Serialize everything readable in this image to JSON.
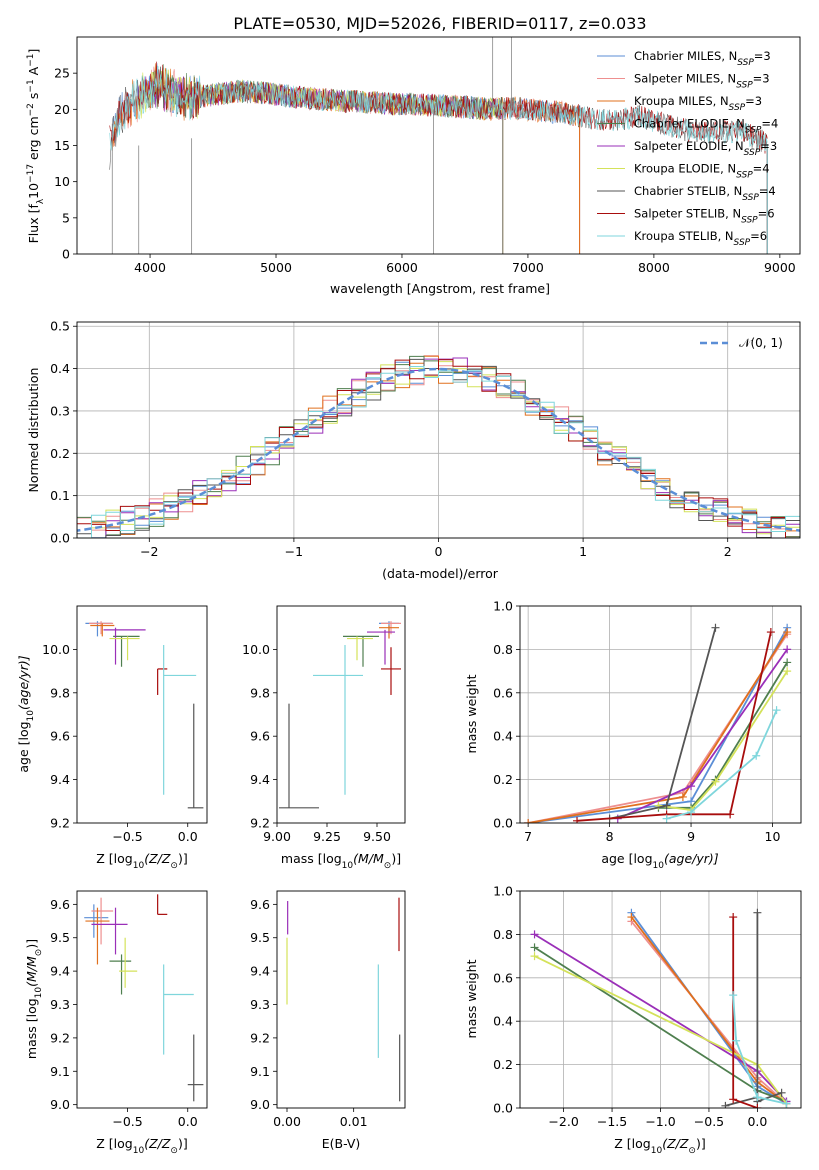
{
  "title": "PLATE=0530, MJD=52026, FIBERID=0117, z=0.033",
  "colors": {
    "Chabrier MILES": "#5b8ed6",
    "Salpeter MILES": "#ee8f8f",
    "Kroupa MILES": "#e0701e",
    "Chabrier ELODIE": "#4f7f4f",
    "Salpeter ELODIE": "#9a2fb8",
    "Kroupa ELODIE": "#d4e25a",
    "Chabrier STELIB": "#555555",
    "Salpeter STELIB": "#a80d0d",
    "Kroupa STELIB": "#7fd6dc"
  },
  "chart_data": [
    {
      "id": "spectrum",
      "type": "line",
      "title": "PLATE=0530, MJD=52026, FIBERID=0117, z=0.033",
      "xlabel": "wavelength [Angstrom, rest frame]",
      "ylabel_pre": "Flux [f",
      "ylabel_sub": "λ",
      "ylabel_mid": "10",
      "ylabel_exp": "−17",
      "ylabel_post": " erg cm",
      "ylabel_exp2": "−2",
      "ylabel_post2": " s",
      "ylabel_exp3": "−1",
      "ylabel_post3": " A",
      "ylabel_exp4": "−1",
      "ylabel_end": "]",
      "xlim": [
        3420,
        9160
      ],
      "ylim": [
        0,
        30
      ],
      "xticks": [
        4000,
        5000,
        6000,
        7000,
        8000,
        9000
      ],
      "yticks": [
        0,
        5,
        10,
        15,
        20,
        25
      ],
      "grid": false,
      "legend": "upper right",
      "legend_entries": [
        {
          "name": "Chabrier MILES",
          "nssp": "3"
        },
        {
          "name": "Salpeter MILES",
          "nssp": "3"
        },
        {
          "name": "Kroupa MILES",
          "nssp": "3"
        },
        {
          "name": "Chabrier ELODIE",
          "nssp": "4"
        },
        {
          "name": "Salpeter ELODIE",
          "nssp": "3"
        },
        {
          "name": "Kroupa ELODIE",
          "nssp": "4"
        },
        {
          "name": "Chabrier STELIB",
          "nssp": "4"
        },
        {
          "name": "Salpeter STELIB",
          "nssp": "6"
        },
        {
          "name": "Kroupa STELIB",
          "nssp": "6"
        }
      ],
      "continuum": {
        "x": [
          3680,
          3750,
          3850,
          3950,
          4050,
          4150,
          4300,
          4500,
          4700,
          4900,
          5100,
          5300,
          5500,
          5700,
          5900,
          6100,
          6300,
          6500,
          6700,
          6900,
          7100,
          7300,
          7500,
          7700,
          7900,
          8100,
          8300,
          8500,
          8700,
          8900,
          9000
        ],
        "y": [
          15,
          19,
          21,
          22,
          23.5,
          22.5,
          21.5,
          22,
          22.5,
          22.3,
          21.8,
          21.5,
          21.2,
          21,
          20.8,
          20.7,
          20.5,
          20.3,
          20,
          20.2,
          19.8,
          19.5,
          18.8,
          18.5,
          19,
          17.8,
          17,
          16.8,
          17,
          15.2,
          15
        ]
      },
      "model_ranges": {
        "Chabrier MILES": [
          3700,
          7410
        ],
        "Salpeter MILES": [
          3700,
          7410
        ],
        "Kroupa MILES": [
          3700,
          7410
        ],
        "Chabrier ELODIE": [
          3900,
          6800
        ],
        "Salpeter ELODIE": [
          3900,
          6800
        ],
        "Kroupa ELODIE": [
          3900,
          6800
        ],
        "Chabrier STELIB": [
          3680,
          8900
        ],
        "Salpeter STELIB": [
          3680,
          8900
        ],
        "Kroupa STELIB": [
          3680,
          8900
        ]
      }
    },
    {
      "id": "residuals",
      "type": "histogram",
      "xlabel": "(data-model)/error",
      "ylabel": "Normed distribution",
      "xlim": [
        -2.5,
        2.5
      ],
      "ylim": [
        0,
        0.51
      ],
      "xticks": [
        -2,
        -1,
        0,
        1,
        2
      ],
      "yticks": [
        0.0,
        0.1,
        0.2,
        0.3,
        0.4,
        0.5
      ],
      "grid": true,
      "legend": "upper right",
      "reference_label": "𝒩(0, 1)",
      "bin_edges_from": -2.6,
      "bin_width": 0.1,
      "bins": 52
    },
    {
      "id": "age-vs-Z",
      "type": "scatter",
      "xlabel_pre": "Z [log",
      "xlabel_sub": "10",
      "xlabel_post": "(Z/Z",
      "xlabel_sub2": "⊙",
      "xlabel_end": ")]",
      "ylabel_pre": "age  [log",
      "ylabel_sub": "10",
      "ylabel_post": "(age/yr)]",
      "xlim": [
        -0.92,
        0.16
      ],
      "ylim": [
        9.2,
        10.2
      ],
      "xticks": [
        -0.5,
        0.0
      ],
      "xticklabels": [
        "−0.5",
        "0.0"
      ],
      "yticks": [
        9.2,
        9.4,
        9.6,
        9.8,
        10.0
      ],
      "grid": false,
      "points": {
        "Chabrier MILES": {
          "x": -0.75,
          "xerr": [
            0.1,
            0.12
          ],
          "y": 10.12,
          "yerr": [
            0.06,
            0.01
          ]
        },
        "Salpeter MILES": {
          "x": -0.72,
          "xerr": [
            0.1,
            0.1
          ],
          "y": 10.12,
          "yerr": [
            0.05,
            0.01
          ]
        },
        "Kroupa MILES": {
          "x": -0.71,
          "xerr": [
            0.1,
            0.1
          ],
          "y": 10.11,
          "yerr": [
            0.05,
            0.01
          ]
        },
        "Chabrier ELODIE": {
          "x": -0.55,
          "xerr": [
            0.07,
            0.15
          ],
          "y": 10.06,
          "yerr": [
            0.14,
            0.0
          ]
        },
        "Salpeter ELODIE": {
          "x": -0.6,
          "xerr": [
            0.1,
            0.25
          ],
          "y": 10.09,
          "yerr": [
            0.16,
            0.01
          ]
        },
        "Kroupa ELODIE": {
          "x": -0.5,
          "xerr": [
            0.15,
            0.1
          ],
          "y": 10.05,
          "yerr": [
            0.1,
            0.01
          ]
        },
        "Chabrier STELIB": {
          "x": 0.05,
          "xerr": [
            0.05,
            0.08
          ],
          "y": 9.27,
          "yerr": [
            0.0,
            0.48
          ]
        },
        "Salpeter STELIB": {
          "x": -0.25,
          "xerr": [
            0.0,
            0.08
          ],
          "y": 9.91,
          "yerr": [
            0.12,
            0.0
          ]
        },
        "Kroupa STELIB": {
          "x": -0.2,
          "xerr": [
            0.0,
            0.27
          ],
          "y": 9.88,
          "yerr": [
            0.55,
            0.14
          ]
        }
      }
    },
    {
      "id": "age-vs-mass",
      "type": "scatter",
      "xlabel_pre": "mass [log",
      "xlabel_sub": "10",
      "xlabel_post": "(M/M",
      "xlabel_sub2": "⊙",
      "xlabel_end": ")]",
      "ylim": [
        9.2,
        10.2
      ],
      "xlim": [
        9.0,
        9.64
      ],
      "xticks": [
        9.0,
        9.25,
        9.5
      ],
      "xticklabels": [
        "9.00",
        "9.25",
        "9.50"
      ],
      "yticks": [
        9.2,
        9.4,
        9.6,
        9.8,
        10.0
      ],
      "grid": false,
      "points": {
        "Chabrier MILES": {
          "x": 9.56,
          "xerr": [
            0.05,
            0.05
          ],
          "y": 10.12,
          "yerr": [
            0.05,
            0.01
          ]
        },
        "Salpeter MILES": {
          "x": 9.57,
          "xerr": [
            0.05,
            0.05
          ],
          "y": 10.12,
          "yerr": [
            0.05,
            0.01
          ]
        },
        "Kroupa MILES": {
          "x": 9.56,
          "xerr": [
            0.05,
            0.05
          ],
          "y": 10.1,
          "yerr": [
            0.05,
            0.01
          ]
        },
        "Chabrier ELODIE": {
          "x": 9.43,
          "xerr": [
            0.1,
            0.08
          ],
          "y": 10.06,
          "yerr": [
            0.14,
            0.0
          ]
        },
        "Salpeter ELODIE": {
          "x": 9.54,
          "xerr": [
            0.09,
            0.05
          ],
          "y": 10.08,
          "yerr": [
            0.15,
            0.01
          ]
        },
        "Kroupa ELODIE": {
          "x": 9.4,
          "xerr": [
            0.05,
            0.08
          ],
          "y": 10.05,
          "yerr": [
            0.1,
            0.01
          ]
        },
        "Chabrier STELIB": {
          "x": 9.06,
          "xerr": [
            0.05,
            0.15
          ],
          "y": 9.27,
          "yerr": [
            0.0,
            0.48
          ]
        },
        "Salpeter STELIB": {
          "x": 9.57,
          "xerr": [
            0.05,
            0.05
          ],
          "y": 9.91,
          "yerr": [
            0.12,
            0.1
          ]
        },
        "Kroupa STELIB": {
          "x": 9.34,
          "xerr": [
            0.16,
            0.09
          ],
          "y": 9.88,
          "yerr": [
            0.55,
            0.14
          ]
        }
      }
    },
    {
      "id": "weight-vs-age",
      "type": "line",
      "xlabel_pre": "age  [log",
      "xlabel_sub": "10",
      "xlabel_post": "(age/yr)]",
      "ylabel": "mass weight",
      "xlim": [
        6.9,
        10.35
      ],
      "ylim": [
        0,
        1.0
      ],
      "xticks": [
        7,
        8,
        9,
        10
      ],
      "yticks": [
        0.0,
        0.2,
        0.4,
        0.6,
        0.8,
        1.0
      ],
      "grid": true,
      "series": {
        "Chabrier MILES": {
          "x": [
            7.0,
            9.0,
            10.18
          ],
          "y": [
            0.0,
            0.1,
            0.9
          ]
        },
        "Salpeter MILES": {
          "x": [
            7.0,
            8.9,
            10.18
          ],
          "y": [
            0.0,
            0.14,
            0.87
          ]
        },
        "Kroupa MILES": {
          "x": [
            7.0,
            8.9,
            10.18
          ],
          "y": [
            0.0,
            0.12,
            0.88
          ]
        },
        "Chabrier ELODIE": {
          "x": [
            8.6,
            9.0,
            9.3,
            10.18
          ],
          "y": [
            0.07,
            0.07,
            0.2,
            0.74
          ]
        },
        "Salpeter ELODIE": {
          "x": [
            8.1,
            9.0,
            10.18
          ],
          "y": [
            0.02,
            0.17,
            0.8
          ]
        },
        "Kroupa ELODIE": {
          "x": [
            8.6,
            9.0,
            9.3,
            10.18
          ],
          "y": [
            0.08,
            0.06,
            0.19,
            0.7
          ]
        },
        "Chabrier STELIB": {
          "x": [
            8.0,
            8.7,
            9.3
          ],
          "y": [
            0.02,
            0.08,
            0.9
          ]
        },
        "Salpeter STELIB": {
          "x": [
            7.6,
            8.7,
            9.48,
            9.98
          ],
          "y": [
            0.01,
            0.04,
            0.04,
            0.88
          ]
        },
        "Kroupa STELIB": {
          "x": [
            8.7,
            9.0,
            9.8,
            10.05
          ],
          "y": [
            0.02,
            0.05,
            0.31,
            0.52
          ]
        }
      }
    },
    {
      "id": "mass-vs-Z",
      "type": "scatter",
      "xlabel_pre": "Z [log",
      "xlabel_sub": "10",
      "xlabel_post": "(Z/Z",
      "xlabel_sub2": "⊙",
      "xlabel_end": ")]",
      "ylabel_pre": "mass [log",
      "ylabel_sub": "10",
      "ylabel_post": "(M/M",
      "ylabel_sub2": "⊙",
      "ylabel_end": ")]",
      "xlim": [
        -0.92,
        0.16
      ],
      "ylim": [
        8.99,
        9.64
      ],
      "xticks": [
        -0.5,
        0.0
      ],
      "xticklabels": [
        "−0.5",
        "0.0"
      ],
      "yticks": [
        9.0,
        9.1,
        9.2,
        9.3,
        9.4,
        9.5,
        9.6
      ],
      "grid": false,
      "points": {
        "Chabrier MILES": {
          "x": -0.78,
          "xerr": [
            0.08,
            0.12
          ],
          "y": 9.56,
          "yerr": [
            0.06,
            0.04
          ]
        },
        "Salpeter MILES": {
          "x": -0.72,
          "xerr": [
            0.08,
            0.1
          ],
          "y": 9.58,
          "yerr": [
            0.1,
            0.04
          ]
        },
        "Kroupa MILES": {
          "x": -0.75,
          "xerr": [
            0.1,
            0.1
          ],
          "y": 9.55,
          "yerr": [
            0.13,
            0.04
          ]
        },
        "Chabrier ELODIE": {
          "x": -0.55,
          "xerr": [
            0.1,
            0.08
          ],
          "y": 9.43,
          "yerr": [
            0.1,
            0.02
          ]
        },
        "Salpeter ELODIE": {
          "x": -0.6,
          "xerr": [
            0.2,
            0.1
          ],
          "y": 9.54,
          "yerr": [
            0.09,
            0.05
          ]
        },
        "Kroupa ELODIE": {
          "x": -0.52,
          "xerr": [
            0.05,
            0.1
          ],
          "y": 9.4,
          "yerr": [
            0.05,
            0.1
          ]
        },
        "Chabrier STELIB": {
          "x": 0.05,
          "xerr": [
            0.05,
            0.08
          ],
          "y": 9.06,
          "yerr": [
            0.05,
            0.15
          ]
        },
        "Salpeter STELIB": {
          "x": -0.25,
          "xerr": [
            0.0,
            0.08
          ],
          "y": 9.57,
          "yerr": [
            0.0,
            0.06
          ]
        },
        "Kroupa STELIB": {
          "x": -0.2,
          "xerr": [
            0.0,
            0.25
          ],
          "y": 9.33,
          "yerr": [
            0.18,
            0.09
          ]
        }
      }
    },
    {
      "id": "mass-vs-ebv",
      "type": "scatter",
      "xlabel": "E(B-V)",
      "xlim": [
        -0.0015,
        0.0177
      ],
      "ylim": [
        8.99,
        9.64
      ],
      "xticks": [
        0.0,
        0.01
      ],
      "xticklabels": [
        "0.00",
        "0.01"
      ],
      "yticks": [
        9.0,
        9.1,
        9.2,
        9.3,
        9.4,
        9.5,
        9.6
      ],
      "grid": false,
      "points": {
        "Salpeter ELODIE": {
          "x": 0.0001,
          "xerr": [
            0,
            0
          ],
          "y": 9.56,
          "yerr": [
            0.05,
            0.05
          ]
        },
        "Kroupa ELODIE": {
          "x": 0.0,
          "xerr": [
            0,
            0
          ],
          "y": 9.4,
          "yerr": [
            0.1,
            0.1
          ]
        },
        "Chabrier STELIB": {
          "x": 0.0169,
          "xerr": [
            0,
            0
          ],
          "y": 9.11,
          "yerr": [
            0.1,
            0.1
          ]
        },
        "Salpeter STELIB": {
          "x": 0.0168,
          "xerr": [
            0,
            0
          ],
          "y": 9.54,
          "yerr": [
            0.08,
            0.08
          ]
        },
        "Kroupa STELIB": {
          "x": 0.0137,
          "xerr": [
            0,
            0
          ],
          "y": 9.28,
          "yerr": [
            0.14,
            0.14
          ]
        }
      }
    },
    {
      "id": "weight-vs-Z",
      "type": "line",
      "xlabel_pre": "Z [log",
      "xlabel_sub": "10",
      "xlabel_post": "(Z/Z",
      "xlabel_sub2": "⊙",
      "xlabel_end": ")]",
      "ylabel": "mass weight",
      "xlim": [
        -2.45,
        0.45
      ],
      "ylim": [
        0,
        1.0
      ],
      "xticks": [
        -2.0,
        -1.5,
        -1.0,
        -0.5,
        0.0
      ],
      "xticklabels": [
        "−2.0",
        "−1.5",
        "−1.0",
        "−0.5",
        "0.0"
      ],
      "yticks": [
        0.0,
        0.2,
        0.4,
        0.6,
        0.8,
        1.0
      ],
      "grid": true,
      "series": {
        "Chabrier MILES": {
          "x": [
            -1.3,
            0.0,
            0.3
          ],
          "y": [
            0.9,
            0.1,
            0.02
          ]
        },
        "Salpeter MILES": {
          "x": [
            -1.3,
            0.0,
            0.3
          ],
          "y": [
            0.86,
            0.14,
            0.02
          ]
        },
        "Kroupa MILES": {
          "x": [
            -1.3,
            0.0,
            0.3
          ],
          "y": [
            0.88,
            0.12,
            0.02
          ]
        },
        "Chabrier ELODIE": {
          "x": [
            -2.3,
            0.0,
            0.3
          ],
          "y": [
            0.74,
            0.08,
            0.03
          ]
        },
        "Salpeter ELODIE": {
          "x": [
            -2.3,
            0.0,
            0.3
          ],
          "y": [
            0.8,
            0.17,
            0.03
          ]
        },
        "Kroupa ELODIE": {
          "x": [
            -2.3,
            0.0,
            0.3
          ],
          "y": [
            0.7,
            0.2,
            0.02
          ]
        },
        "Chabrier STELIB": {
          "x": [
            -0.33,
            0.0,
            0.0,
            0.0,
            0.25
          ],
          "y": [
            0.01,
            0.05,
            0.9,
            0.03,
            0.07
          ]
        },
        "Salpeter STELIB": {
          "x": [
            -0.25,
            -0.25,
            0.0
          ],
          "y": [
            0.88,
            0.04,
            0.0
          ]
        },
        "Kroupa STELIB": {
          "x": [
            -0.25,
            -0.22,
            0.0,
            0.3
          ],
          "y": [
            0.52,
            0.31,
            0.05,
            0.02
          ]
        }
      }
    }
  ]
}
